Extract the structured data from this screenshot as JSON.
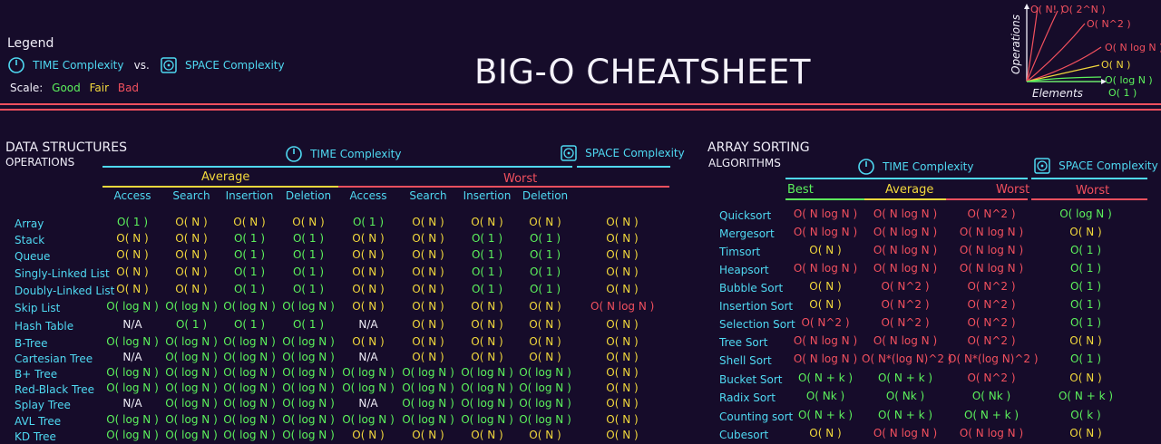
{
  "title": "BIG-O CHEATSHEET",
  "legend": {
    "heading": "Legend",
    "time": "TIME Complexity",
    "vs": "vs.",
    "space": "SPACE Complexity",
    "scale_label": "Scale:",
    "good": "Good",
    "fair": "Fair",
    "bad": "Bad"
  },
  "graph": {
    "y_label": "Operations",
    "x_label": "Elements",
    "curves": [
      "O( N! )",
      "O( 2^N )",
      "O( N^2 )",
      "O( N log N )",
      "O( N )",
      "O( log N )",
      "O( 1 )"
    ]
  },
  "colors": {
    "good": "#5cf25c",
    "fair": "#f2d83c",
    "bad": "#f2505e",
    "cyan": "#4fd9f2",
    "bg": "#160c2a"
  },
  "ds": {
    "heading1": "DATA STRUCTURES",
    "heading2": "OPERATIONS",
    "time": "TIME Complexity",
    "space": "SPACE Complexity",
    "average": "Average",
    "worst": "Worst",
    "ops": [
      "Access",
      "Search",
      "Insertion",
      "Deletion",
      "Access",
      "Search",
      "Insertion",
      "Deletion"
    ],
    "rows": [
      {
        "name": "Array",
        "v": [
          [
            "O( 1 )",
            "g"
          ],
          [
            "O( N )",
            "f"
          ],
          [
            "O( N )",
            "f"
          ],
          [
            "O( N )",
            "f"
          ],
          [
            "O( 1 )",
            "g"
          ],
          [
            "O( N )",
            "f"
          ],
          [
            "O( N )",
            "f"
          ],
          [
            "O( N )",
            "f"
          ],
          [
            "O( N )",
            "f"
          ]
        ]
      },
      {
        "name": "Stack",
        "v": [
          [
            "O( N )",
            "f"
          ],
          [
            "O( N )",
            "f"
          ],
          [
            "O( 1 )",
            "g"
          ],
          [
            "O( 1 )",
            "g"
          ],
          [
            "O( N )",
            "f"
          ],
          [
            "O( N )",
            "f"
          ],
          [
            "O( 1 )",
            "g"
          ],
          [
            "O( 1 )",
            "g"
          ],
          [
            "O( N )",
            "f"
          ]
        ]
      },
      {
        "name": "Queue",
        "v": [
          [
            "O( N )",
            "f"
          ],
          [
            "O( N )",
            "f"
          ],
          [
            "O( 1 )",
            "g"
          ],
          [
            "O( 1 )",
            "g"
          ],
          [
            "O( N )",
            "f"
          ],
          [
            "O( N )",
            "f"
          ],
          [
            "O( 1 )",
            "g"
          ],
          [
            "O( 1 )",
            "g"
          ],
          [
            "O( N )",
            "f"
          ]
        ]
      },
      {
        "name": "Singly-Linked List",
        "v": [
          [
            "O( N )",
            "f"
          ],
          [
            "O( N )",
            "f"
          ],
          [
            "O( 1 )",
            "g"
          ],
          [
            "O( 1 )",
            "g"
          ],
          [
            "O( N )",
            "f"
          ],
          [
            "O( N )",
            "f"
          ],
          [
            "O( 1 )",
            "g"
          ],
          [
            "O( 1 )",
            "g"
          ],
          [
            "O( N )",
            "f"
          ]
        ]
      },
      {
        "name": "Doubly-Linked List",
        "v": [
          [
            "O( N )",
            "f"
          ],
          [
            "O( N )",
            "f"
          ],
          [
            "O( 1 )",
            "g"
          ],
          [
            "O( 1 )",
            "g"
          ],
          [
            "O( N )",
            "f"
          ],
          [
            "O( N )",
            "f"
          ],
          [
            "O( 1 )",
            "g"
          ],
          [
            "O( 1 )",
            "g"
          ],
          [
            "O( N )",
            "f"
          ]
        ]
      },
      {
        "name": "Skip List",
        "v": [
          [
            "O( log N )",
            "g"
          ],
          [
            "O( log N )",
            "g"
          ],
          [
            "O( log N )",
            "g"
          ],
          [
            "O( log N )",
            "g"
          ],
          [
            "O( N )",
            "f"
          ],
          [
            "O( N )",
            "f"
          ],
          [
            "O( N )",
            "f"
          ],
          [
            "O( N )",
            "f"
          ],
          [
            "O( N log N )",
            "b"
          ]
        ]
      },
      {
        "name": "Hash Table",
        "v": [
          [
            "N/A",
            "w"
          ],
          [
            "O( 1 )",
            "g"
          ],
          [
            "O( 1 )",
            "g"
          ],
          [
            "O( 1 )",
            "g"
          ],
          [
            "N/A",
            "w"
          ],
          [
            "O( N )",
            "f"
          ],
          [
            "O( N )",
            "f"
          ],
          [
            "O( N )",
            "f"
          ],
          [
            "O( N )",
            "f"
          ]
        ]
      },
      {
        "name": "B-Tree",
        "v": [
          [
            "O( log N )",
            "g"
          ],
          [
            "O( log N )",
            "g"
          ],
          [
            "O( log N )",
            "g"
          ],
          [
            "O( log N )",
            "g"
          ],
          [
            "O( N )",
            "f"
          ],
          [
            "O( N )",
            "f"
          ],
          [
            "O( N )",
            "f"
          ],
          [
            "O( N )",
            "f"
          ],
          [
            "O( N )",
            "f"
          ]
        ]
      },
      {
        "name": "Cartesian Tree",
        "v": [
          [
            "N/A",
            "w"
          ],
          [
            "O( log N )",
            "g"
          ],
          [
            "O( log N )",
            "g"
          ],
          [
            "O( log N )",
            "g"
          ],
          [
            "N/A",
            "w"
          ],
          [
            "O( N )",
            "f"
          ],
          [
            "O( N )",
            "f"
          ],
          [
            "O( N )",
            "f"
          ],
          [
            "O( N )",
            "f"
          ]
        ]
      },
      {
        "name": "B+ Tree",
        "v": [
          [
            "O( log N )",
            "g"
          ],
          [
            "O( log N )",
            "g"
          ],
          [
            "O( log N )",
            "g"
          ],
          [
            "O( log N )",
            "g"
          ],
          [
            "O( log N )",
            "g"
          ],
          [
            "O( log N )",
            "g"
          ],
          [
            "O( log N )",
            "g"
          ],
          [
            "O( log N )",
            "g"
          ],
          [
            "O( N )",
            "f"
          ]
        ]
      },
      {
        "name": "Red-Black Tree",
        "v": [
          [
            "O( log N )",
            "g"
          ],
          [
            "O( log N )",
            "g"
          ],
          [
            "O( log N )",
            "g"
          ],
          [
            "O( log N )",
            "g"
          ],
          [
            "O( log N )",
            "g"
          ],
          [
            "O( log N )",
            "g"
          ],
          [
            "O( log N )",
            "g"
          ],
          [
            "O( log N )",
            "g"
          ],
          [
            "O( N )",
            "f"
          ]
        ]
      },
      {
        "name": "Splay Tree",
        "v": [
          [
            "N/A",
            "w"
          ],
          [
            "O( log N )",
            "g"
          ],
          [
            "O( log N )",
            "g"
          ],
          [
            "O( log N )",
            "g"
          ],
          [
            "N/A",
            "w"
          ],
          [
            "O( log N )",
            "g"
          ],
          [
            "O( log N )",
            "g"
          ],
          [
            "O( log N )",
            "g"
          ],
          [
            "O( N )",
            "f"
          ]
        ]
      },
      {
        "name": "AVL Tree",
        "v": [
          [
            "O( log N )",
            "g"
          ],
          [
            "O( log N )",
            "g"
          ],
          [
            "O( log N )",
            "g"
          ],
          [
            "O( log N )",
            "g"
          ],
          [
            "O( log N )",
            "g"
          ],
          [
            "O( log N )",
            "g"
          ],
          [
            "O( log N )",
            "g"
          ],
          [
            "O( log N )",
            "g"
          ],
          [
            "O( N )",
            "f"
          ]
        ]
      },
      {
        "name": "KD Tree",
        "v": [
          [
            "O( log N )",
            "g"
          ],
          [
            "O( log N )",
            "g"
          ],
          [
            "O( log N )",
            "g"
          ],
          [
            "O( log N )",
            "g"
          ],
          [
            "O( N )",
            "f"
          ],
          [
            "O( N )",
            "f"
          ],
          [
            "O( N )",
            "f"
          ],
          [
            "O( N )",
            "f"
          ],
          [
            "O( N )",
            "f"
          ]
        ]
      }
    ]
  },
  "sort": {
    "heading1": "ARRAY SORTING",
    "heading2": "ALGORITHMS",
    "time": "TIME Complexity",
    "space": "SPACE Complexity",
    "best": "Best",
    "average": "Average",
    "worst": "Worst",
    "space_worst": "Worst",
    "rows": [
      {
        "name": "Quicksort",
        "v": [
          [
            "O( N log N )",
            "b"
          ],
          [
            "O( N log N )",
            "b"
          ],
          [
            "O( N^2 )",
            "b"
          ],
          [
            "O( log N )",
            "g"
          ]
        ]
      },
      {
        "name": "Mergesort",
        "v": [
          [
            "O( N log N )",
            "b"
          ],
          [
            "O( N log N )",
            "b"
          ],
          [
            "O( N log N )",
            "b"
          ],
          [
            "O( N )",
            "f"
          ]
        ]
      },
      {
        "name": "Timsort",
        "v": [
          [
            "O( N )",
            "f"
          ],
          [
            "O( N log N )",
            "b"
          ],
          [
            "O( N log N )",
            "b"
          ],
          [
            "O( 1 )",
            "g"
          ]
        ]
      },
      {
        "name": "Heapsort",
        "v": [
          [
            "O( N log N )",
            "b"
          ],
          [
            "O( N log N )",
            "b"
          ],
          [
            "O( N log N )",
            "b"
          ],
          [
            "O( 1 )",
            "g"
          ]
        ]
      },
      {
        "name": "Bubble Sort",
        "v": [
          [
            "O( N )",
            "f"
          ],
          [
            "O( N^2 )",
            "b"
          ],
          [
            "O( N^2 )",
            "b"
          ],
          [
            "O( 1 )",
            "g"
          ]
        ]
      },
      {
        "name": "Insertion Sort",
        "v": [
          [
            "O( N )",
            "f"
          ],
          [
            "O( N^2 )",
            "b"
          ],
          [
            "O( N^2 )",
            "b"
          ],
          [
            "O( 1 )",
            "g"
          ]
        ]
      },
      {
        "name": "Selection Sort",
        "v": [
          [
            "O( N^2 )",
            "b"
          ],
          [
            "O( N^2 )",
            "b"
          ],
          [
            "O( N^2 )",
            "b"
          ],
          [
            "O( 1 )",
            "g"
          ]
        ]
      },
      {
        "name": "Tree Sort",
        "v": [
          [
            "O( N log N )",
            "b"
          ],
          [
            "O( N log N )",
            "b"
          ],
          [
            "O( N^2 )",
            "b"
          ],
          [
            "O( N )",
            "f"
          ]
        ]
      },
      {
        "name": "Shell Sort",
        "v": [
          [
            "O( N log N )",
            "b"
          ],
          [
            "O( N*(log N)^2 )",
            "b"
          ],
          [
            "O( N*(log N)^2 )",
            "b"
          ],
          [
            "O( 1 )",
            "g"
          ]
        ]
      },
      {
        "name": "Bucket Sort",
        "v": [
          [
            "O( N + k )",
            "g"
          ],
          [
            "O( N + k )",
            "g"
          ],
          [
            "O( N^2 )",
            "b"
          ],
          [
            "O( N )",
            "f"
          ]
        ]
      },
      {
        "name": "Radix Sort",
        "v": [
          [
            "O( Nk )",
            "g"
          ],
          [
            "O( Nk )",
            "g"
          ],
          [
            "O( Nk )",
            "g"
          ],
          [
            "O( N + k )",
            "g"
          ]
        ]
      },
      {
        "name": "Counting sort",
        "v": [
          [
            "O( N + k )",
            "g"
          ],
          [
            "O( N + k )",
            "g"
          ],
          [
            "O( N + k )",
            "g"
          ],
          [
            "O( k )",
            "g"
          ]
        ]
      },
      {
        "name": "Cubesort",
        "v": [
          [
            "O( N )",
            "f"
          ],
          [
            "O( N log N )",
            "b"
          ],
          [
            "O( N log N )",
            "b"
          ],
          [
            "O( N )",
            "f"
          ]
        ]
      }
    ]
  }
}
